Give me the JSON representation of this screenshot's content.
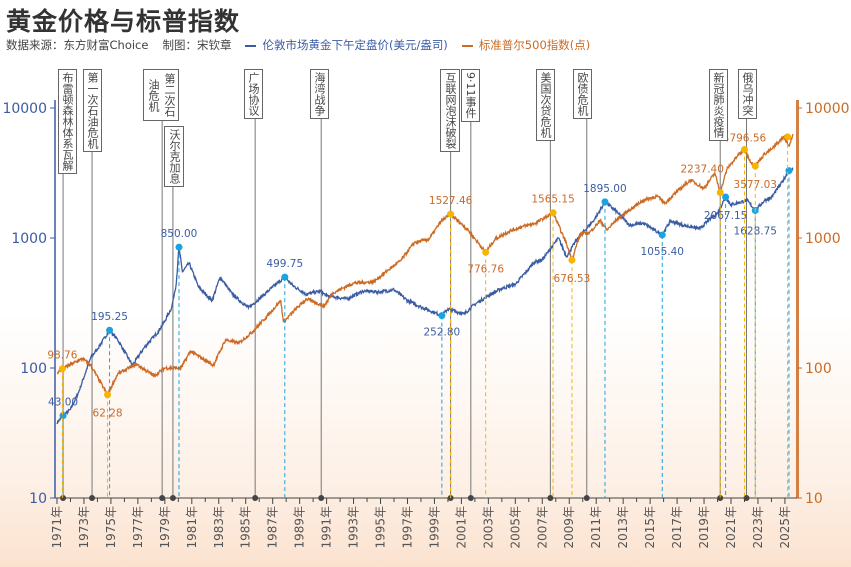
{
  "title": "黄金价格与标普指数",
  "source": "数据来源：东方财富Choice",
  "author": "制图：宋钦章",
  "colors": {
    "gold": "#3b5ca3",
    "sp500": "#cc6a24",
    "gold_marker": "#1aa3e0",
    "sp500_marker": "#f7b500",
    "event_line": "#777777"
  },
  "chart_data": {
    "type": "line",
    "title": "黄金价格与标普指数",
    "y_scale": "log",
    "ylim": [
      10,
      10000
    ],
    "y_ticks": [
      10,
      100,
      1000,
      10000
    ],
    "y_tick_labels": [
      "10",
      "100",
      "1000",
      "10000"
    ],
    "x_range": [
      1971,
      2025.7
    ],
    "x_tick_labels": [
      "1971年",
      "1973年",
      "1975年",
      "1977年",
      "1979年",
      "1981年",
      "1983年",
      "1985年",
      "1987年",
      "1989年",
      "1991年",
      "1993年",
      "1995年",
      "1997年",
      "1999年",
      "2001年",
      "2003年",
      "2005年",
      "2007年",
      "2009年",
      "2011年",
      "2013年",
      "2015年",
      "2017年",
      "2019年",
      "2021年",
      "2023年",
      "2025年"
    ],
    "grid": false,
    "legend": "top",
    "series": [
      {
        "name": "伦敦市场黄金下午定盘价(美元/盎司)",
        "axis": "left",
        "x": [
          1971.0,
          1971.45,
          1972.0,
          1972.6,
          1973.5,
          1974.0,
          1974.9,
          1975.5,
          1976.6,
          1977.5,
          1978.5,
          1979.0,
          1979.5,
          1979.85,
          1980.05,
          1980.3,
          1980.8,
          1981.5,
          1982.5,
          1983.1,
          1984.0,
          1985.2,
          1986.0,
          1987.0,
          1987.9,
          1988.5,
          1989.5,
          1990.5,
          1991.0,
          1992.5,
          1993.7,
          1995.0,
          1996.0,
          1997.0,
          1998.0,
          1999.55,
          2000.0,
          2001.2,
          2002.0,
          2003.0,
          2004.0,
          2005.0,
          2006.4,
          2007.0,
          2008.2,
          2008.8,
          2009.5,
          2010.0,
          2010.9,
          2011.65,
          2012.5,
          2013.5,
          2014.5,
          2015.9,
          2016.5,
          2017.5,
          2018.7,
          2019.5,
          2020.0,
          2020.6,
          2021.0,
          2022.2,
          2022.8,
          2023.5,
          2024.0,
          2024.8,
          2025.3,
          2025.6
        ],
        "y": [
          38,
          43,
          48,
          65,
          120,
          140,
          195.25,
          165,
          105,
          145,
          190,
          230,
          290,
          450,
          850,
          550,
          640,
          420,
          330,
          500,
          370,
          290,
          340,
          420,
          499.75,
          430,
          370,
          390,
          360,
          340,
          390,
          385,
          400,
          330,
          295,
          252.8,
          285,
          260,
          310,
          360,
          410,
          440,
          650,
          680,
          1000,
          720,
          950,
          1100,
          1400,
          1895,
          1600,
          1250,
          1300,
          1055.4,
          1350,
          1250,
          1180,
          1420,
          1550,
          2067.15,
          1800,
          1950,
          1628.75,
          1950,
          2050,
          2700,
          3300,
          3350
        ]
      },
      {
        "name": "标准普尔500指数(点)",
        "axis": "right",
        "x": [
          1971.0,
          1971.4,
          1972.9,
          1973.5,
          1974.75,
          1975.5,
          1976.9,
          1978.2,
          1979.0,
          1980.2,
          1980.9,
          1982.6,
          1983.5,
          1984.5,
          1985.5,
          1986.5,
          1987.6,
          1987.8,
          1988.5,
          1989.5,
          1990.8,
          1991.5,
          1993.0,
          1994.5,
          1995.5,
          1996.5,
          1997.5,
          1998.6,
          1999.5,
          2000.2,
          2001.5,
          2002.8,
          2003.5,
          2004.5,
          2005.5,
          2006.5,
          2007.8,
          2008.8,
          2009.2,
          2009.8,
          2010.5,
          2011.3,
          2011.8,
          2012.5,
          2013.5,
          2014.5,
          2015.5,
          2016.1,
          2017.0,
          2018.0,
          2018.98,
          2019.8,
          2020.2,
          2020.7,
          2021.5,
          2022.0,
          2022.5,
          2022.8,
          2023.5,
          2024.0,
          2024.9,
          2025.3,
          2025.6
        ],
        "y": [
          92,
          98.76,
          118,
          105,
          62.28,
          90,
          107,
          87,
          100,
          100,
          135,
          105,
          165,
          155,
          190,
          245,
          330,
          225,
          270,
          340,
          300,
          380,
          450,
          460,
          560,
          670,
          920,
          980,
          1350,
          1527.46,
          1150,
          776.76,
          980,
          1120,
          1220,
          1300,
          1565.15,
          900,
          676.53,
          1070,
          1100,
          1360,
          1150,
          1380,
          1650,
          1950,
          2100,
          1850,
          2280,
          2800,
          2400,
          3150,
          2237.4,
          3400,
          4300,
          4796.56,
          3800,
          3577.03,
          4450,
          4800,
          6000,
          5100,
          6300
        ]
      }
    ],
    "annotations": {
      "gold": [
        {
          "x": 1971.45,
          "y": 43.0,
          "label": "43.00"
        },
        {
          "x": 1974.9,
          "y": 195.25,
          "label": "195.25"
        },
        {
          "x": 1980.05,
          "y": 850.0,
          "label": "850.00"
        },
        {
          "x": 1987.9,
          "y": 499.75,
          "label": "499.75"
        },
        {
          "x": 1999.55,
          "y": 252.8,
          "label": "252.80"
        },
        {
          "x": 2011.65,
          "y": 1895.0,
          "label": "1895.00"
        },
        {
          "x": 2015.9,
          "y": 1055.4,
          "label": "1055.40"
        },
        {
          "x": 2020.6,
          "y": 2067.15,
          "label": "2067.15"
        },
        {
          "x": 2022.8,
          "y": 1628.75,
          "label": "1628.75"
        },
        {
          "x": 2025.3,
          "y": 3300,
          "label": ""
        }
      ],
      "sp500": [
        {
          "x": 1971.4,
          "y": 98.76,
          "label": "98.76"
        },
        {
          "x": 1974.75,
          "y": 62.28,
          "label": "62.28"
        },
        {
          "x": 2000.2,
          "y": 1527.46,
          "label": "1527.46"
        },
        {
          "x": 2002.8,
          "y": 776.76,
          "label": "776.76"
        },
        {
          "x": 2007.8,
          "y": 1565.15,
          "label": "1565.15"
        },
        {
          "x": 2009.2,
          "y": 676.53,
          "label": "676.53"
        },
        {
          "x": 2020.2,
          "y": 2237.4,
          "label": "2237.40"
        },
        {
          "x": 2022.0,
          "y": 4796.56,
          "label": "4796.56"
        },
        {
          "x": 2022.8,
          "y": 3577.03,
          "label": "3577.03"
        },
        {
          "x": 2025.2,
          "y": 6000,
          "label": ""
        }
      ]
    },
    "events": [
      {
        "x": 1971.45,
        "label": "布雷顿森林体系瓦解"
      },
      {
        "x": 1973.6,
        "label": "第一次石油危机"
      },
      {
        "x": 1978.8,
        "label": "第二次石油危机"
      },
      {
        "x": 1979.6,
        "label": "沃尔克加息"
      },
      {
        "x": 1985.7,
        "label": "广场协议"
      },
      {
        "x": 1990.6,
        "label": "海湾战争"
      },
      {
        "x": 2000.2,
        "label": "互联网泡沫破裂"
      },
      {
        "x": 2001.7,
        "label": "9·11事件"
      },
      {
        "x": 2007.6,
        "label": "美国次贷危机"
      },
      {
        "x": 2010.3,
        "label": "欧债危机"
      },
      {
        "x": 2020.2,
        "label": "新冠肺炎疫情"
      },
      {
        "x": 2022.15,
        "label": "俄乌冲突"
      }
    ]
  }
}
